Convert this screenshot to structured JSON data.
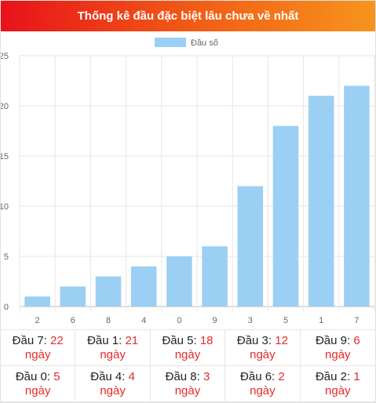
{
  "title": "Thống kê đầu đặc biệt lâu chưa về nhất",
  "chart_data": {
    "type": "bar",
    "series_name": "Đầu số",
    "categories": [
      "2",
      "6",
      "8",
      "4",
      "0",
      "9",
      "3",
      "5",
      "1",
      "7"
    ],
    "values": [
      1,
      2,
      3,
      4,
      5,
      6,
      12,
      18,
      21,
      22
    ],
    "ylim": [
      0,
      25
    ],
    "yticks": [
      "0",
      "5",
      "10",
      "15",
      "20",
      "25"
    ],
    "bar_color": "#9ccff4",
    "grid": true,
    "legend": "top-center"
  },
  "stats": [
    {
      "label": "Đầu 7:",
      "value": "22",
      "unit": "ngày"
    },
    {
      "label": "Đầu 1:",
      "value": "21",
      "unit": "ngày"
    },
    {
      "label": "Đầu 5:",
      "value": "18",
      "unit": "ngày"
    },
    {
      "label": "Đầu 3:",
      "value": "12",
      "unit": "ngày"
    },
    {
      "label": "Đầu 9:",
      "value": "6",
      "unit": "ngày"
    },
    {
      "label": "Đầu 0:",
      "value": "5",
      "unit": "ngày"
    },
    {
      "label": "Đầu 4:",
      "value": "4",
      "unit": "ngày"
    },
    {
      "label": "Đầu 8:",
      "value": "3",
      "unit": "ngày"
    },
    {
      "label": "Đầu 6:",
      "value": "2",
      "unit": "ngày"
    },
    {
      "label": "Đầu 2:",
      "value": "1",
      "unit": "ngày"
    }
  ]
}
